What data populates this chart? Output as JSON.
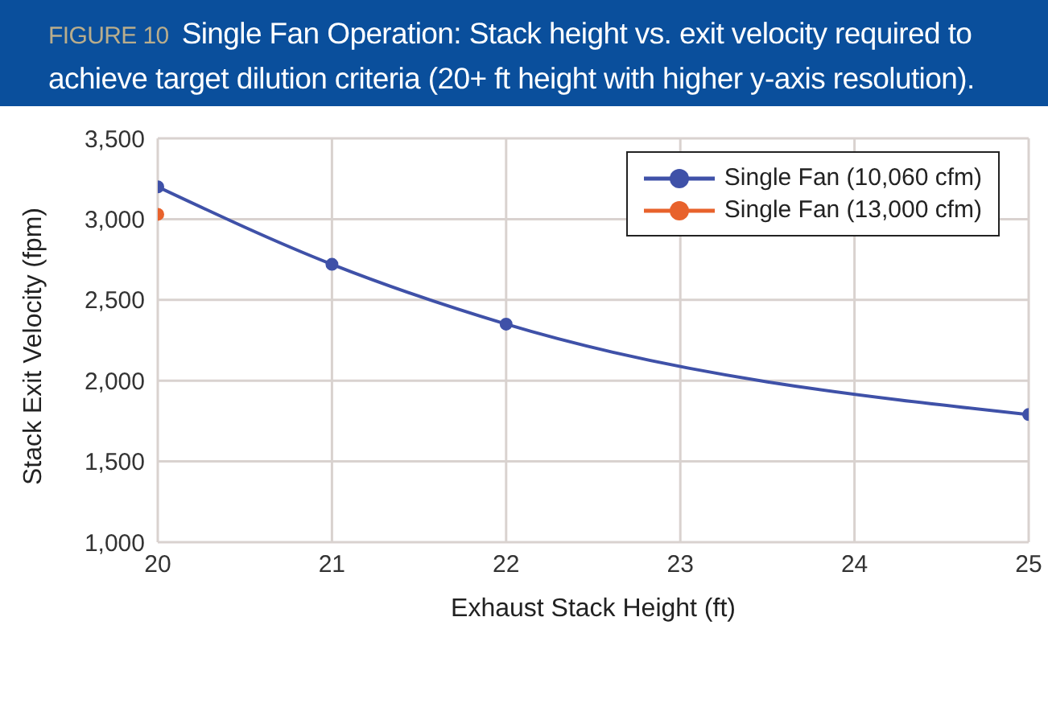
{
  "chart_data": {
    "type": "line",
    "annotations": [
      "FIGURE 10"
    ],
    "title": "Single Fan Operation: Stack height vs. exit velocity required to achieve target dilution criteria (20+ ft height with higher y-axis resolution).",
    "xlabel": "Exhaust Stack Height (ft)",
    "ylabel": "Stack Exit Velocity (fpm)",
    "series": [
      {
        "name": "Single Fan (10,060 cfm)",
        "color": "#3f51a8",
        "x": [
          20,
          21,
          22,
          25
        ],
        "values": [
          3200,
          2720,
          2350,
          1790
        ]
      },
      {
        "name": "Single Fan (13,000 cfm)",
        "color": "#e8622c",
        "x": [
          20
        ],
        "values": [
          3030
        ]
      }
    ],
    "xlim": [
      20,
      25
    ],
    "xticks": [
      20,
      21,
      22,
      23,
      24,
      25
    ],
    "ylim": [
      1000,
      3500
    ],
    "yticks": [
      {
        "value": 1000,
        "label": "1,000"
      },
      {
        "value": 1500,
        "label": "1,500"
      },
      {
        "value": 2000,
        "label": "2,000"
      },
      {
        "value": 2500,
        "label": "2,500"
      },
      {
        "value": 3000,
        "label": "3,000"
      },
      {
        "value": 3500,
        "label": "3,500"
      }
    ],
    "grid": true,
    "legend": "top right",
    "marker": "circle",
    "line_style": "solid"
  }
}
